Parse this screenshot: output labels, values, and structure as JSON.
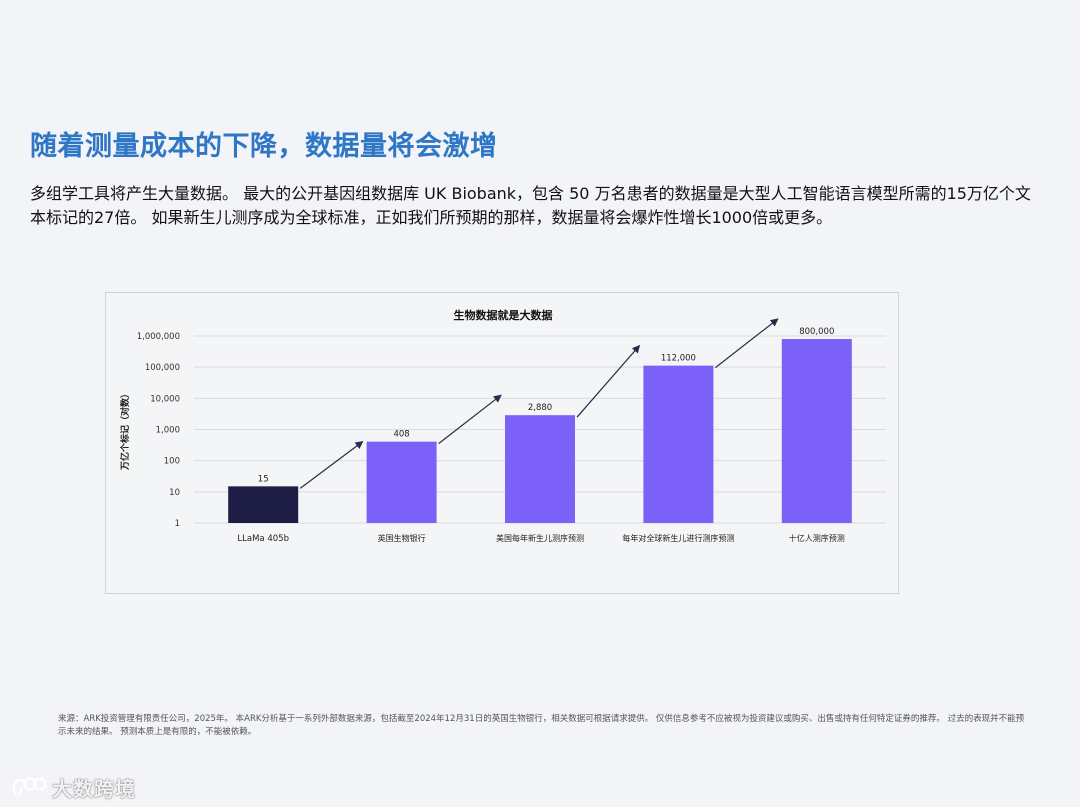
{
  "page": {
    "title": "随着测量成本的下降，数据量将会激增",
    "body": "多组学工具将产生大量数据。 最大的公开基因组数据库 UK Biobank，包含 50 万名患者的数据量是大型人工智能语言模型所需的15万亿个文本标记的27倍。 如果新生儿测序成为全球标准，正如我们所预期的那样，数据量将会爆炸性增长1000倍或更多。",
    "footnote": "来源：ARK投资管理有限责任公司，2025年。 本ARK分析基于一系列外部数据来源，包括截至2024年12月31日的英国生物银行，相关数据可根据请求提供。 仅供信息参考不应被视为投资建议或购买、出售或持有任何特定证券的推荐。 过去的表现并不能预示未来的结果。 预测本质上是有限的，不能被依赖。",
    "watermark": "大数跨境"
  },
  "chart_data": {
    "type": "bar",
    "title": "生物数据就是大数据",
    "ylabel": "万亿个标记（对数）",
    "xlabel": "",
    "y_scale": "log",
    "ylim": [
      1,
      1000000
    ],
    "y_ticks": [
      1,
      10,
      100,
      1000,
      10000,
      100000,
      1000000
    ],
    "y_tick_labels": [
      "1",
      "10",
      "100",
      "1,000",
      "10,000",
      "100,000",
      "1,000,000"
    ],
    "grid": true,
    "categories": [
      "LLaMa 405b",
      "英国生物银行",
      "美国每年新生儿测序预测",
      "每年对全球新生儿进行测序预测",
      "十亿人测序预测"
    ],
    "values": [
      15,
      408,
      2880,
      112000,
      800000
    ],
    "value_labels": [
      "15",
      "408",
      "2,880",
      "112,000",
      "800,000"
    ],
    "bar_colors": [
      "#1e1d45",
      "#7b61f7",
      "#7b61f7",
      "#7b61f7",
      "#7b61f7"
    ],
    "arrows_between_bars": true
  }
}
